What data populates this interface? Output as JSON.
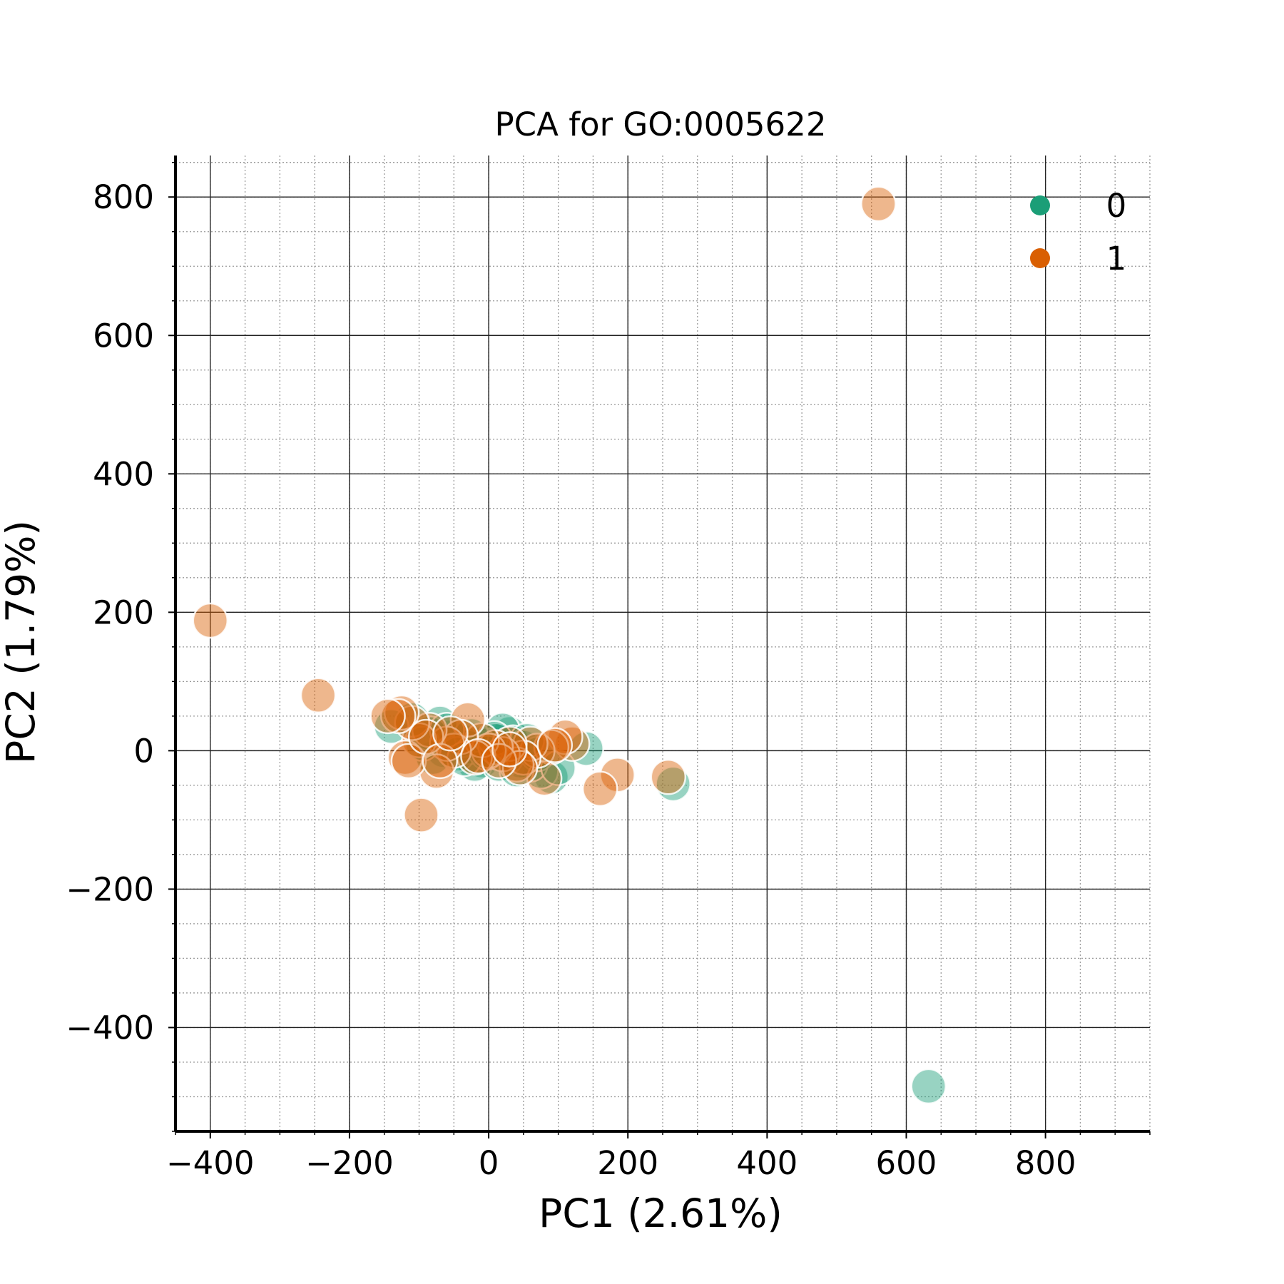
{
  "chart_data": {
    "type": "scatter",
    "title": "PCA for GO:0005622",
    "xlabel": "PC1 (2.61%)",
    "ylabel": "PC2 (1.79%)",
    "xlim": [
      -450,
      950
    ],
    "ylim": [
      -550,
      860
    ],
    "xticks": [
      -400,
      -200,
      0,
      200,
      400,
      600,
      800
    ],
    "yticks": [
      -400,
      -200,
      0,
      200,
      400,
      600,
      800
    ],
    "xtick_labels": [
      "−400",
      "−200",
      "0",
      "200",
      "400",
      "600",
      "800"
    ],
    "ytick_labels": [
      "−400",
      "−200",
      "0",
      "200",
      "400",
      "600",
      "800"
    ],
    "grid": true,
    "minor_grid": true,
    "legend_position": "top-right",
    "series": [
      {
        "name": "0",
        "color": "#1b9e77",
        "points": [
          [
            632,
            -485
          ],
          [
            265,
            -48
          ],
          [
            140,
            3
          ],
          [
            90,
            -38
          ],
          [
            75,
            -30
          ],
          [
            60,
            -20
          ],
          [
            45,
            -15
          ],
          [
            30,
            25
          ],
          [
            20,
            30
          ],
          [
            10,
            15
          ],
          [
            5,
            5
          ],
          [
            0,
            0
          ],
          [
            -5,
            8
          ],
          [
            -10,
            -15
          ],
          [
            -15,
            10
          ],
          [
            -20,
            -20
          ],
          [
            -30,
            5
          ],
          [
            -40,
            15
          ],
          [
            -55,
            20
          ],
          [
            -65,
            0
          ],
          [
            -70,
            40
          ],
          [
            -80,
            -10
          ],
          [
            -85,
            25
          ],
          [
            -95,
            10
          ],
          [
            -110,
            45
          ],
          [
            -140,
            35
          ],
          [
            25,
            -10
          ],
          [
            35,
            12
          ],
          [
            50,
            5
          ],
          [
            15,
            -20
          ],
          [
            -25,
            22
          ],
          [
            -45,
            -5
          ],
          [
            70,
            -5
          ],
          [
            100,
            -25
          ],
          [
            -3,
            -3
          ],
          [
            8,
            18
          ],
          [
            -60,
            30
          ],
          [
            40,
            -28
          ],
          [
            55,
            15
          ],
          [
            -35,
            -12
          ]
        ]
      },
      {
        "name": "1",
        "color": "#d95f02",
        "points": [
          [
            560,
            790
          ],
          [
            -400,
            188
          ],
          [
            -245,
            80
          ],
          [
            -97,
            -93
          ],
          [
            258,
            -38
          ],
          [
            185,
            -35
          ],
          [
            160,
            -55
          ],
          [
            120,
            10
          ],
          [
            110,
            20
          ],
          [
            90,
            5
          ],
          [
            80,
            -40
          ],
          [
            70,
            0
          ],
          [
            60,
            10
          ],
          [
            50,
            -10
          ],
          [
            40,
            -20
          ],
          [
            30,
            10
          ],
          [
            20,
            -5
          ],
          [
            10,
            5
          ],
          [
            0,
            0
          ],
          [
            -10,
            15
          ],
          [
            -20,
            -10
          ],
          [
            -30,
            45
          ],
          [
            -40,
            20
          ],
          [
            -50,
            0
          ],
          [
            -60,
            10
          ],
          [
            -75,
            -30
          ],
          [
            -85,
            30
          ],
          [
            -100,
            15
          ],
          [
            -110,
            40
          ],
          [
            -120,
            -10
          ],
          [
            -125,
            55
          ],
          [
            -130,
            50
          ],
          [
            -145,
            50
          ],
          [
            -115,
            -15
          ],
          [
            -90,
            20
          ],
          [
            -70,
            -15
          ],
          [
            45,
            -25
          ],
          [
            95,
            8
          ],
          [
            -15,
            -8
          ],
          [
            15,
            -15
          ],
          [
            -55,
            25
          ],
          [
            30,
            2
          ]
        ]
      }
    ]
  }
}
